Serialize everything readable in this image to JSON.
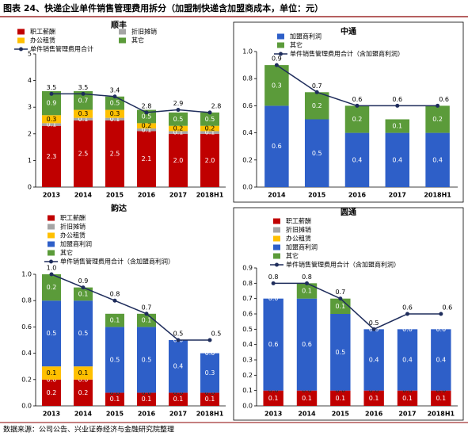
{
  "title": "图表 24、快递企业单件销售管理费用拆分（加盟制快递含加盟商成本，单位：元）",
  "source": "数据来源：公司公告、兴业证券经济与金融研究院整理",
  "chart_data": [
    {
      "type": "bar",
      "title": "顺丰",
      "categories": [
        "2013",
        "2014",
        "2015",
        "2016",
        "2017",
        "2018H1"
      ],
      "ylim": [
        0,
        5
      ],
      "yticks": [
        0,
        1,
        2,
        3,
        4,
        5
      ],
      "grid": false,
      "series": [
        {
          "name": "职工薪酬",
          "kind": "bar",
          "color": "#c00000",
          "values": [
            2.3,
            2.5,
            2.5,
            2.1,
            2.0,
            2.0
          ],
          "value_labels": [
            "2.3",
            "2.5",
            "2.5",
            "2.1",
            "2.0",
            "2.0"
          ]
        },
        {
          "name": "折旧摊销",
          "kind": "bar",
          "color": "#a5a5a5",
          "values": [
            0.1,
            0.1,
            0.1,
            0.1,
            0.1,
            0.1
          ],
          "value_labels": [
            "0.1",
            "0.1",
            "0.1",
            "0.1",
            "0.1",
            "0.1"
          ]
        },
        {
          "name": "办公租赁",
          "kind": "bar",
          "color": "#ffc000",
          "values": [
            0.3,
            0.3,
            0.3,
            0.2,
            0.2,
            0.2
          ],
          "value_labels": [
            "0.3",
            "0.3",
            "0.3",
            "0.2",
            "0.2",
            "0.2"
          ]
        },
        {
          "name": "其它",
          "kind": "bar",
          "color": "#5b9b3a",
          "values": [
            0.9,
            0.7,
            0.5,
            0.5,
            0.5,
            0.5
          ],
          "value_labels": [
            "0.9",
            "0.7",
            "0.5",
            "0.5",
            "0.5",
            "0.5"
          ]
        },
        {
          "name": "单件销售管理费用合计",
          "kind": "line",
          "color": "#1f2d5c",
          "values": [
            3.5,
            3.5,
            3.4,
            2.8,
            2.9,
            2.8
          ],
          "value_labels": [
            "3.5",
            "3.5",
            "3.4",
            "2.8",
            "2.9",
            "2.8"
          ]
        }
      ]
    },
    {
      "type": "bar",
      "title": "中通",
      "categories": [
        "2014",
        "2015",
        "2016",
        "2017",
        "2018H1"
      ],
      "ylim": [
        0,
        1
      ],
      "yticks": [
        {
          "value": 0,
          "label": "0.0"
        },
        0.2,
        0.4,
        0.6,
        0.8,
        {
          "value": 1,
          "label": "1.0"
        }
      ],
      "grid": false,
      "series": [
        {
          "name": "加盟商利润",
          "kind": "bar",
          "color": "#2e5fc8",
          "values": [
            0.6,
            0.5,
            0.4,
            0.4,
            0.4
          ],
          "value_labels": [
            "0.6",
            "0.5",
            "0.4",
            "0.4",
            "0.4"
          ]
        },
        {
          "name": "其它",
          "kind": "bar",
          "color": "#5b9b3a",
          "values": [
            0.3,
            0.2,
            0.2,
            0.1,
            0.2
          ],
          "value_labels": [
            "0.3",
            "0.2",
            "0.2",
            "0.1",
            "0.2"
          ]
        },
        {
          "name": "单件销售管理费用合计（含加盟商利润）",
          "kind": "line",
          "color": "#1f2d5c",
          "values": [
            0.9,
            0.7,
            0.6,
            0.6,
            0.6
          ],
          "value_labels": [
            "0.9",
            "0.7",
            "0.6",
            "0.6",
            "0.6"
          ]
        }
      ]
    },
    {
      "type": "bar",
      "title": "韵达",
      "categories": [
        "2013",
        "2014",
        "2015",
        "2016",
        "2017",
        "2018H1"
      ],
      "ylim": [
        0,
        1
      ],
      "yticks": [
        {
          "value": 0,
          "label": "0.0"
        },
        0.2,
        0.4,
        0.6,
        0.8,
        {
          "value": 1,
          "label": "1.0"
        }
      ],
      "grid": false,
      "series": [
        {
          "name": "职工薪酬",
          "kind": "bar",
          "color": "#c00000",
          "values": [
            0.2,
            0.2,
            0.1,
            0.1,
            0.1,
            0.1
          ],
          "value_labels": [
            "0.2",
            "0.2",
            "0.1",
            "0.1",
            "0.1",
            "0.1"
          ]
        },
        {
          "name": "折旧摊销",
          "kind": "bar",
          "color": "#a5a5a5",
          "values": [
            0,
            0,
            0,
            0,
            0,
            0
          ],
          "value_labels": [
            "0.0",
            "0.0",
            "0.0",
            "0.0",
            "0.0",
            "0.0"
          ]
        },
        {
          "name": "办公租赁",
          "kind": "bar",
          "color": "#ffc000",
          "values": [
            0.1,
            0.1,
            0,
            0,
            0,
            0
          ],
          "value_labels": [
            "0.1",
            "0.1",
            "0.0",
            "0.0",
            "0.0",
            "0.0"
          ]
        },
        {
          "name": "加盟商利润",
          "kind": "bar",
          "color": "#2e5fc8",
          "values": [
            0.5,
            0.5,
            0.5,
            0.5,
            0.4,
            0.3
          ],
          "value_labels": [
            "0.5",
            "0.5",
            "0.5",
            "0.5",
            "0.4",
            "0.3"
          ]
        },
        {
          "name": "其它",
          "kind": "bar",
          "color": "#5b9b3a",
          "values": [
            0.2,
            0.1,
            0.1,
            0.1,
            0,
            0
          ],
          "value_labels": [
            "0.2",
            "0.1",
            "0.1",
            "0.1",
            "0.0",
            "0.0"
          ]
        },
        {
          "name": "单件销售管理费用合计（含加盟商利润）",
          "kind": "line",
          "color": "#1f2d5c",
          "values": [
            1.0,
            0.9,
            0.8,
            0.7,
            0.5,
            0.5
          ],
          "value_labels": [
            "1.0",
            "0.9",
            "0.8",
            "0.7",
            "0.5",
            "0.5"
          ]
        }
      ]
    },
    {
      "type": "bar",
      "title": "圆通",
      "categories": [
        "2013",
        "2014",
        "2015",
        "2016",
        "2017",
        "2018H1"
      ],
      "ylim": [
        0,
        0.9
      ],
      "yticks": [
        {
          "value": 0,
          "label": "0.0"
        },
        0.1,
        0.2,
        0.3,
        0.4,
        0.5,
        0.6,
        0.7,
        0.8,
        0.9
      ],
      "grid": false,
      "series": [
        {
          "name": "职工薪酬",
          "kind": "bar",
          "color": "#c00000",
          "values": [
            0.1,
            0.1,
            0.1,
            0.1,
            0.1,
            0.1
          ],
          "value_labels": [
            "0.1",
            "0.1",
            "0.1",
            "0.1",
            "0.1",
            "0.1"
          ]
        },
        {
          "name": "折旧摊销",
          "kind": "bar",
          "color": "#a5a5a5",
          "values": [
            0,
            0,
            0,
            0,
            0,
            0
          ],
          "value_labels": [
            "0.0",
            "0.0",
            "0.0",
            "0.0",
            "0.0",
            "0.0"
          ]
        },
        {
          "name": "办公租赁",
          "kind": "bar",
          "color": "#ffc000",
          "values": [
            0,
            0,
            0,
            0,
            0,
            0
          ],
          "value_labels": [
            "0.0",
            "0.0",
            "0.0",
            "0.0",
            "0.0",
            "0.0"
          ]
        },
        {
          "name": "加盟商利润",
          "kind": "bar",
          "color": "#2e5fc8",
          "values": [
            0.6,
            0.6,
            0.5,
            0.4,
            0.4,
            0.4
          ],
          "value_labels": [
            "0.6",
            "0.6",
            "0.5",
            "0.4",
            "0.4",
            "0.4"
          ]
        },
        {
          "name": "其它",
          "kind": "bar",
          "color": "#5b9b3a",
          "values": [
            0,
            0.1,
            0.1,
            0,
            0,
            0
          ],
          "value_labels": [
            "0.0",
            "0.1",
            "0.1",
            "0.0",
            "0.0",
            "0.0"
          ]
        },
        {
          "name": "单件销售管理费用合计（含加盟商利润）",
          "kind": "line",
          "color": "#1f2d5c",
          "values": [
            0.8,
            0.8,
            0.7,
            0.5,
            0.6,
            0.6
          ],
          "value_labels": [
            "0.8",
            "0.8",
            "0.7",
            "0.5",
            "0.6",
            "0.6"
          ]
        }
      ]
    }
  ]
}
